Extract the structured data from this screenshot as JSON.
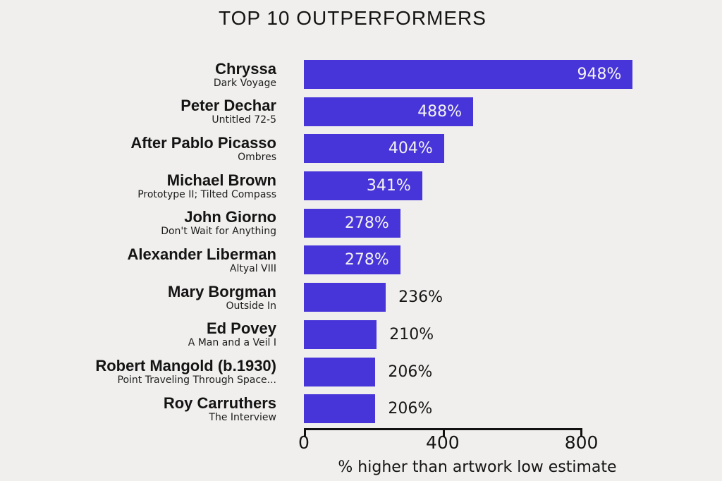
{
  "title": "TOP 10 OUTPERFORMERS",
  "colors": {
    "bar": "#4735d9",
    "background": "#f0efed",
    "value_inside_text": "#f4f3f1",
    "text": "#161616"
  },
  "chart_data": {
    "type": "bar",
    "orientation": "horizontal",
    "title": "TOP 10 OUTPERFORMERS",
    "xlabel": "% higher than artwork low estimate",
    "xlim": [
      0,
      1000
    ],
    "xticks": [
      0,
      400,
      800
    ],
    "xtick_labels": [
      "0",
      "400",
      "800"
    ],
    "grid": false,
    "legend": "none",
    "bar_color": "#4735d9",
    "categories": [
      "Chryssa",
      "Peter Dechar",
      "After Pablo Picasso",
      "Michael Brown",
      "John Giorno",
      "Alexander Liberman",
      "Mary Borgman",
      "Ed Povey",
      "Robert Mangold (b.1930)",
      "Roy Carruthers"
    ],
    "values": [
      948,
      488,
      404,
      341,
      278,
      278,
      236,
      210,
      206,
      206
    ],
    "bars": [
      {
        "artist": "Chryssa",
        "artwork": "Dark Voyage",
        "value": 948,
        "label": "948%",
        "label_inside": true
      },
      {
        "artist": "Peter Dechar",
        "artwork": "Untitled 72-5",
        "value": 488,
        "label": "488%",
        "label_inside": true
      },
      {
        "artist": "After Pablo Picasso",
        "artwork": "Ombres",
        "value": 404,
        "label": "404%",
        "label_inside": true
      },
      {
        "artist": "Michael Brown",
        "artwork": "Prototype II; Tilted Compass",
        "value": 341,
        "label": "341%",
        "label_inside": true
      },
      {
        "artist": "John Giorno",
        "artwork": "Don't Wait for Anything",
        "value": 278,
        "label": "278%",
        "label_inside": true
      },
      {
        "artist": "Alexander Liberman",
        "artwork": "Altyal VIII",
        "value": 278,
        "label": "278%",
        "label_inside": true
      },
      {
        "artist": "Mary Borgman",
        "artwork": "Outside In",
        "value": 236,
        "label": "236%",
        "label_inside": false
      },
      {
        "artist": "Ed Povey",
        "artwork": "A Man and a Veil I",
        "value": 210,
        "label": "210%",
        "label_inside": false
      },
      {
        "artist": "Robert Mangold (b.1930)",
        "artwork": "Point Traveling Through Space...",
        "value": 206,
        "label": "206%",
        "label_inside": false
      },
      {
        "artist": "Roy Carruthers",
        "artwork": "The Interview",
        "value": 206,
        "label": "206%",
        "label_inside": false
      }
    ]
  }
}
